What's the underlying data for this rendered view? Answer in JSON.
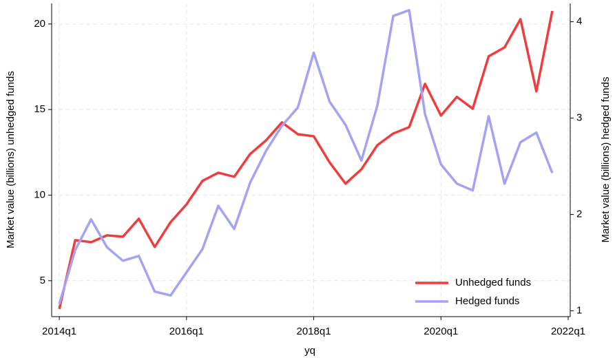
{
  "chart_data": {
    "type": "line",
    "x_label": "yq",
    "y_label": "Market value (billions) unhedged funds",
    "y2_label": "Market value (billions) hedged funds",
    "x": [
      216,
      217,
      218,
      219,
      220,
      221,
      222,
      223,
      224,
      225,
      226,
      227,
      228,
      229,
      230,
      231,
      232,
      233,
      234,
      235,
      236,
      237,
      238,
      239,
      240,
      241,
      242,
      243,
      244,
      245,
      246,
      247
    ],
    "xlim": [
      215.52,
      248.13
    ],
    "xticks": [
      {
        "value": 216,
        "label": "2014q1"
      },
      {
        "value": 224,
        "label": "2016q1"
      },
      {
        "value": 232,
        "label": "2018q1"
      },
      {
        "value": 240,
        "label": "2020q1"
      },
      {
        "value": 248,
        "label": "2022q1"
      }
    ],
    "ylim": [
      2.9,
      21.2
    ],
    "yticks": [
      5,
      10,
      15,
      20
    ],
    "y2lim": [
      0.94,
      4.19
    ],
    "y2ticks": [
      1,
      2,
      3,
      4
    ],
    "grid": true,
    "legend": "lower right",
    "series": [
      {
        "name": "Unhedged funds",
        "color": "#f03c3c",
        "values": [
          3.35,
          7.37,
          7.25,
          7.65,
          7.57,
          8.62,
          6.97,
          8.42,
          9.46,
          10.83,
          11.31,
          11.07,
          12.4,
          13.2,
          14.25,
          13.56,
          13.44,
          11.91,
          10.67,
          11.51,
          12.92,
          13.6,
          13.97,
          16.5,
          14.65,
          15.74,
          15.05,
          18.11,
          18.63,
          20.28,
          16.06,
          20.76
        ]
      },
      {
        "name": "Hedged funds",
        "color": "#a3a3f5",
        "axis": "y2",
        "values": [
          1.07,
          1.63,
          1.95,
          1.66,
          1.52,
          1.57,
          1.2,
          1.16,
          1.4,
          1.64,
          2.09,
          1.85,
          2.33,
          2.66,
          2.92,
          3.11,
          3.68,
          3.17,
          2.93,
          2.56,
          3.13,
          4.06,
          4.12,
          3.04,
          2.52,
          2.32,
          2.25,
          3.02,
          2.32,
          2.75,
          2.85,
          2.43
        ]
      }
    ]
  }
}
